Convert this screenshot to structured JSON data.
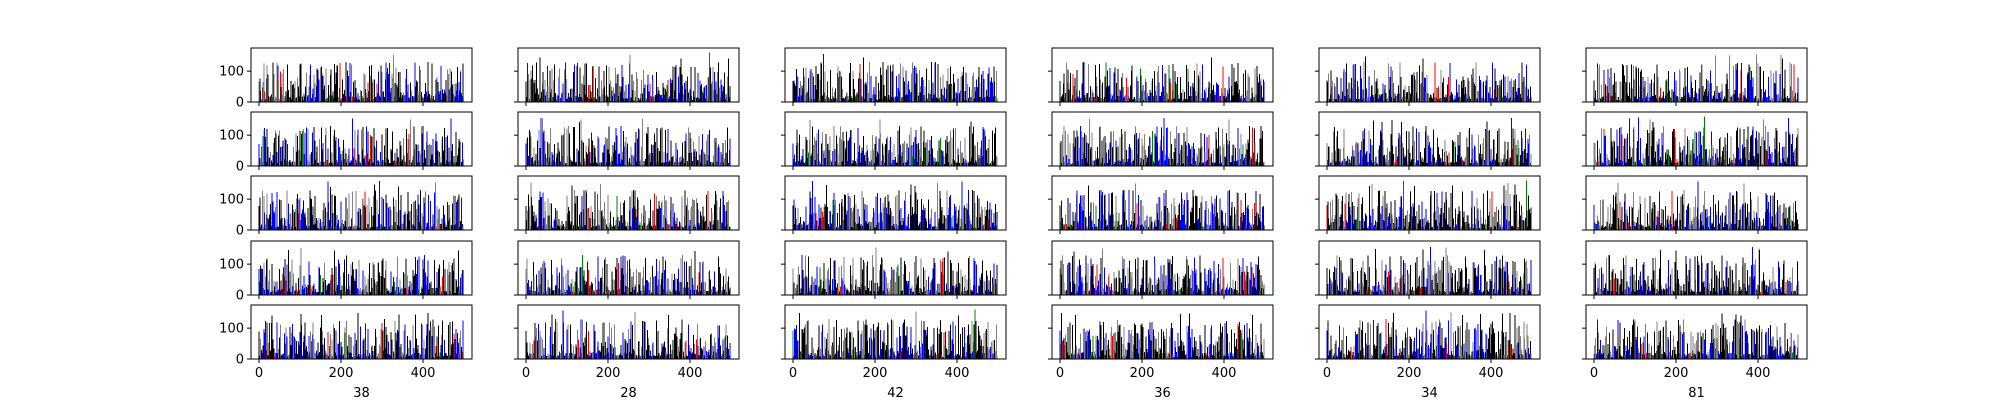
{
  "chart_data": {
    "type": "bar",
    "layout": "5 rows x 6 columns of small-multiple bar panels, shared x and y axes",
    "x_range": [
      0,
      500
    ],
    "x_ticks": [
      0,
      200,
      400
    ],
    "y_range": [
      0,
      175
    ],
    "y_ticks": [
      0,
      100
    ],
    "bars_per_panel": 500,
    "bar_value_range": [
      0,
      160
    ],
    "bar_colors": [
      "#000000",
      "#808080",
      "#0000ff",
      "#ff0000",
      "#008000"
    ],
    "column_labels": [
      "38",
      "28",
      "42",
      "36",
      "34",
      "81"
    ],
    "grid": false,
    "legend": "none",
    "panels_note": "Each panel shows ~500 thin bars with values mostly 0-130 (occasional peaks ~160); colors are predominantly black, gray and blue with a few red and green bars."
  },
  "axis_text": {
    "y_tick_0": "0",
    "y_tick_100": "100",
    "x_tick_0": "0",
    "x_tick_200": "200",
    "x_tick_400": "400"
  }
}
